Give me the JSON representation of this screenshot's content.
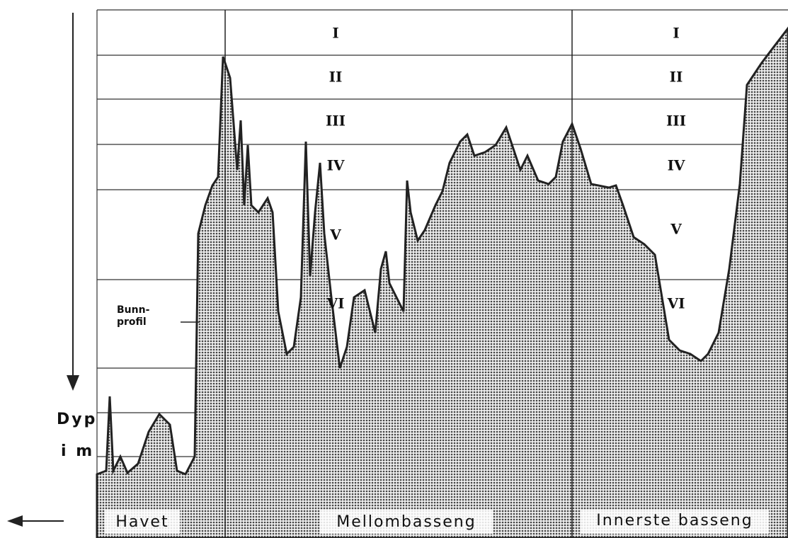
{
  "zones_middle": [
    "I",
    "II",
    "III",
    "IV",
    "V",
    "VI"
  ],
  "zones_inner": [
    "I",
    "II",
    "III",
    "IV",
    "V",
    "VI"
  ],
  "profile_label": [
    "Bunn-",
    "profil"
  ],
  "depth_label": [
    "Dyp",
    "i m"
  ],
  "basins": [
    "Havet",
    "Mellombasseng",
    "Innerste basseng"
  ]
}
